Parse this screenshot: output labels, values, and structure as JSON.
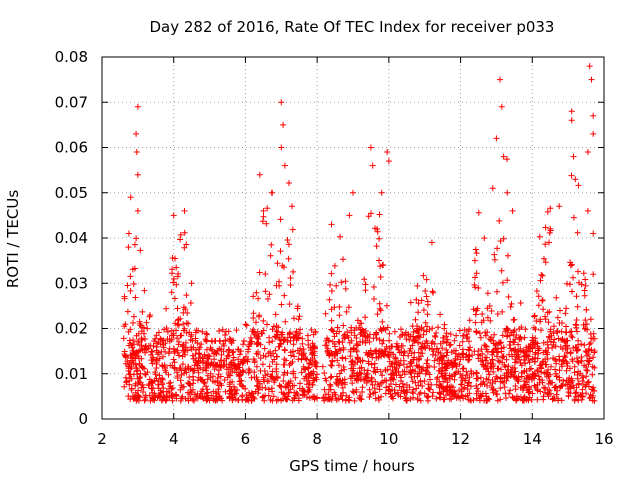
{
  "chart_data": {
    "type": "scatter",
    "title": "Day 282 of 2016, Rate Of TEC Index for receiver p033",
    "xlabel": "GPS time / hours",
    "ylabel": "ROTI / TECUs",
    "xlim": [
      2,
      16
    ],
    "ylim": [
      0,
      0.08
    ],
    "xticks": [
      2,
      4,
      6,
      8,
      10,
      12,
      14,
      16
    ],
    "yticks": [
      0,
      0.01,
      0.02,
      0.03,
      0.04,
      0.05,
      0.06,
      0.07,
      0.08
    ],
    "xtick_labels": [
      "2",
      "4",
      "6",
      "8",
      "10",
      "12",
      "14",
      "16"
    ],
    "ytick_labels": [
      "0",
      "0.01",
      "0.02",
      "0.03",
      "0.04",
      "0.05",
      "0.06",
      "0.07",
      "0.08"
    ],
    "grid": true,
    "marker": "+",
    "color": "#ff0000",
    "series": [
      {
        "name": "ROTI",
        "x_range": [
          2.6,
          15.75
        ],
        "gap": [
          8.0,
          8.15
        ],
        "baseline_range": [
          0.004,
          0.02
        ],
        "notable_points": [
          {
            "x": 2.8,
            "y": 0.049
          },
          {
            "x": 2.75,
            "y": 0.041
          },
          {
            "x": 3.0,
            "y": 0.069
          },
          {
            "x": 2.95,
            "y": 0.063
          },
          {
            "x": 2.97,
            "y": 0.059
          },
          {
            "x": 3.0,
            "y": 0.046
          },
          {
            "x": 3.0,
            "y": 0.054
          },
          {
            "x": 4.0,
            "y": 0.045
          },
          {
            "x": 4.3,
            "y": 0.046
          },
          {
            "x": 6.4,
            "y": 0.054
          },
          {
            "x": 6.75,
            "y": 0.05
          },
          {
            "x": 7.0,
            "y": 0.07
          },
          {
            "x": 7.05,
            "y": 0.065
          },
          {
            "x": 7.0,
            "y": 0.06
          },
          {
            "x": 7.1,
            "y": 0.056
          },
          {
            "x": 7.3,
            "y": 0.047
          },
          {
            "x": 8.4,
            "y": 0.043
          },
          {
            "x": 8.9,
            "y": 0.045
          },
          {
            "x": 9.0,
            "y": 0.05
          },
          {
            "x": 9.5,
            "y": 0.06
          },
          {
            "x": 9.55,
            "y": 0.056
          },
          {
            "x": 9.8,
            "y": 0.05
          },
          {
            "x": 9.95,
            "y": 0.059
          },
          {
            "x": 10.0,
            "y": 0.057
          },
          {
            "x": 11.2,
            "y": 0.039
          },
          {
            "x": 12.9,
            "y": 0.051
          },
          {
            "x": 13.0,
            "y": 0.062
          },
          {
            "x": 13.1,
            "y": 0.075
          },
          {
            "x": 13.15,
            "y": 0.069
          },
          {
            "x": 13.2,
            "y": 0.058
          },
          {
            "x": 13.3,
            "y": 0.05
          },
          {
            "x": 13.45,
            "y": 0.046
          },
          {
            "x": 14.5,
            "y": 0.042
          },
          {
            "x": 14.75,
            "y": 0.047
          },
          {
            "x": 15.1,
            "y": 0.068
          },
          {
            "x": 15.1,
            "y": 0.066
          },
          {
            "x": 15.15,
            "y": 0.058
          },
          {
            "x": 15.2,
            "y": 0.053
          },
          {
            "x": 15.55,
            "y": 0.059
          },
          {
            "x": 15.6,
            "y": 0.078
          },
          {
            "x": 15.65,
            "y": 0.075
          },
          {
            "x": 15.7,
            "y": 0.067
          },
          {
            "x": 15.7,
            "y": 0.063
          },
          {
            "x": 15.55,
            "y": 0.046
          },
          {
            "x": 15.7,
            "y": 0.041
          },
          {
            "x": 15.7,
            "y": 0.032
          },
          {
            "x": 4.5,
            "y": 0.03
          },
          {
            "x": 12.4,
            "y": 0.035
          }
        ],
        "activity_peaks": [
          {
            "x": 2.9,
            "level": 0.035
          },
          {
            "x": 4.2,
            "level": 0.038
          },
          {
            "x": 6.6,
            "level": 0.042
          },
          {
            "x": 7.1,
            "level": 0.045
          },
          {
            "x": 8.6,
            "level": 0.033
          },
          {
            "x": 9.6,
            "level": 0.042
          },
          {
            "x": 11.0,
            "level": 0.028
          },
          {
            "x": 12.5,
            "level": 0.032
          },
          {
            "x": 13.2,
            "level": 0.046
          },
          {
            "x": 14.4,
            "level": 0.034
          },
          {
            "x": 15.2,
            "level": 0.04
          }
        ]
      }
    ]
  }
}
